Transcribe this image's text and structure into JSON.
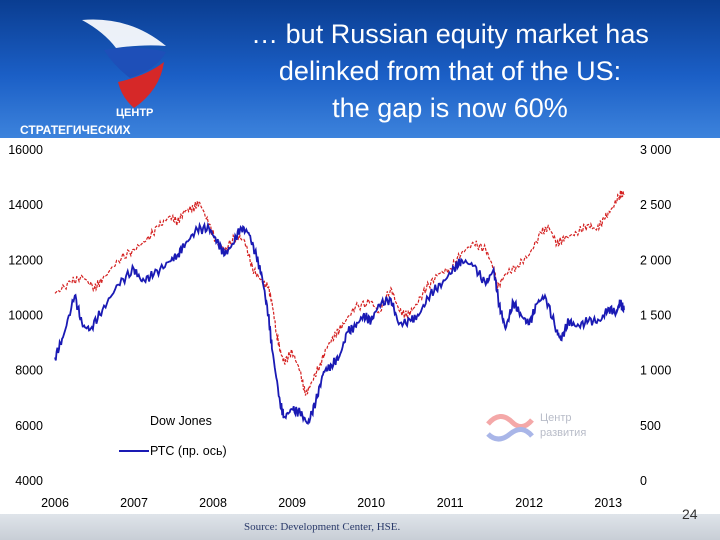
{
  "slide": {
    "title_lines": [
      "… but Russian equity market has",
      "delinked from that of the US:",
      "the gap is now 60%"
    ],
    "logo_text_top": "ЦЕНТР",
    "logo_text_bottom": "СТРАТЕГИЧЕСКИХ",
    "source": "Source: Development Center, HSE.",
    "page_number": "24",
    "watermark_line1": "Центр",
    "watermark_line2": "развития"
  },
  "colors": {
    "header_blue": "#1b5fc6",
    "dow_jones": "#d42020",
    "rts": "#1a1ab4"
  },
  "chart_data": {
    "type": "line",
    "x_ticks": [
      "2006",
      "2007",
      "2008",
      "2009",
      "2010",
      "2011",
      "2012",
      "2013"
    ],
    "xlim": [
      2006.0,
      2013.25
    ],
    "y_left": {
      "ticks": [
        "16000",
        "14000",
        "12000",
        "10000",
        "8000",
        "6000",
        "4000"
      ],
      "lim": [
        4000,
        16000
      ]
    },
    "y_right": {
      "ticks": [
        "3 000",
        "2 500",
        "2 000",
        "1 500",
        "1 000",
        "500",
        "0"
      ],
      "lim": [
        0,
        3000
      ]
    },
    "legend_position": "bottom-left",
    "grid": false,
    "series": [
      {
        "name": "Dow Jones",
        "axis": "left",
        "x": [
          2006.0,
          2006.2,
          2006.35,
          2006.5,
          2006.6,
          2006.8,
          2007.0,
          2007.15,
          2007.3,
          2007.45,
          2007.55,
          2007.65,
          2007.75,
          2007.83,
          2007.95,
          2008.05,
          2008.15,
          2008.3,
          2008.4,
          2008.5,
          2008.6,
          2008.7,
          2008.75,
          2008.8,
          2008.85,
          2008.9,
          2009.0,
          2009.1,
          2009.17,
          2009.25,
          2009.35,
          2009.45,
          2009.55,
          2009.65,
          2009.8,
          2010.0,
          2010.1,
          2010.25,
          2010.35,
          2010.45,
          2010.55,
          2010.7,
          2010.85,
          2011.0,
          2011.15,
          2011.3,
          2011.45,
          2011.55,
          2011.6,
          2011.7,
          2011.85,
          2012.0,
          2012.15,
          2012.25,
          2012.35,
          2012.45,
          2012.6,
          2012.75,
          2012.85,
          2012.95,
          2013.05,
          2013.15,
          2013.2
        ],
        "values": [
          10800,
          11200,
          11400,
          11000,
          11300,
          12000,
          12400,
          12700,
          13200,
          13600,
          13400,
          13800,
          13900,
          14100,
          13300,
          12600,
          12400,
          12900,
          12700,
          11700,
          11300,
          11000,
          10400,
          9400,
          8700,
          8300,
          8700,
          8000,
          7100,
          7600,
          8200,
          8900,
          9300,
          9700,
          10300,
          10500,
          10100,
          11000,
          10200,
          10000,
          10300,
          11000,
          11500,
          11700,
          12300,
          12600,
          12400,
          11700,
          11000,
          11500,
          11800,
          12200,
          13000,
          13200,
          12600,
          12800,
          13000,
          13300,
          13100,
          13500,
          13900,
          14400,
          14400
        ]
      },
      {
        "name": "РТС (пр. ось)",
        "axis": "right",
        "x": [
          2006.0,
          2006.1,
          2006.25,
          2006.35,
          2006.45,
          2006.6,
          2006.8,
          2007.0,
          2007.1,
          2007.25,
          2007.45,
          2007.55,
          2007.65,
          2007.8,
          2007.95,
          2008.05,
          2008.15,
          2008.25,
          2008.35,
          2008.45,
          2008.55,
          2008.62,
          2008.7,
          2008.75,
          2008.85,
          2008.9,
          2009.0,
          2009.1,
          2009.2,
          2009.3,
          2009.4,
          2009.5,
          2009.6,
          2009.7,
          2009.8,
          2009.9,
          2010.0,
          2010.1,
          2010.25,
          2010.35,
          2010.5,
          2010.6,
          2010.75,
          2010.9,
          2011.05,
          2011.15,
          2011.3,
          2011.45,
          2011.55,
          2011.62,
          2011.7,
          2011.8,
          2011.9,
          2012.0,
          2012.1,
          2012.2,
          2012.35,
          2012.4,
          2012.5,
          2012.6,
          2012.75,
          2012.9,
          2013.0,
          2013.1,
          2013.15,
          2013.2
        ],
        "values": [
          1120,
          1300,
          1680,
          1400,
          1380,
          1550,
          1780,
          1920,
          1810,
          1870,
          1990,
          2050,
          2150,
          2280,
          2290,
          2170,
          2050,
          2150,
          2300,
          2250,
          2030,
          1850,
          1500,
          1180,
          700,
          580,
          650,
          620,
          520,
          720,
          990,
          1050,
          1130,
          1350,
          1400,
          1500,
          1450,
          1600,
          1650,
          1420,
          1450,
          1500,
          1700,
          1790,
          1930,
          2000,
          1950,
          1780,
          1920,
          1600,
          1380,
          1620,
          1500,
          1420,
          1610,
          1680,
          1360,
          1280,
          1450,
          1400,
          1450,
          1450,
          1570,
          1520,
          1620,
          1550
        ]
      }
    ]
  }
}
